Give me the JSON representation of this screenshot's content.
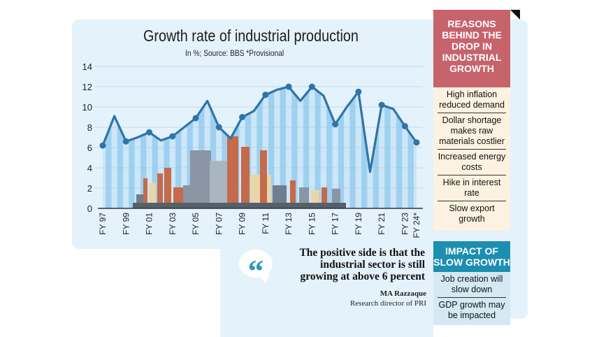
{
  "chart_data": {
    "type": "line",
    "title": "Growth rate of industrial production",
    "subtitle": "In %; Source: BBS *Provisional",
    "categories": [
      "FY 97",
      "FY 98",
      "FY 99",
      "FY 00",
      "FY 01",
      "FY 02",
      "FY 03",
      "FY 04",
      "FY 05",
      "FY 06",
      "FY 07",
      "FY 08",
      "FY 09",
      "FY 10",
      "FY 11",
      "FY 12",
      "FY 13",
      "FY 14",
      "FY 15",
      "FY 16",
      "FY 17",
      "FY 18",
      "FY 19",
      "FY 20",
      "FY 21",
      "FY 22",
      "FY 23",
      "FY 24*"
    ],
    "tick_labels": [
      "FY 97",
      "",
      "FY 99",
      "",
      "FY 01",
      "",
      "FY 03",
      "",
      "FY 05",
      "",
      "FY 07",
      "",
      "FY 09",
      "",
      "FY 11",
      "",
      "FY 13",
      "",
      "FY 15",
      "",
      "FY 17",
      "",
      "FY 19",
      "",
      "FY 21",
      "",
      "FY 23",
      "FY 24*"
    ],
    "values": [
      6.2,
      9.1,
      6.6,
      7.0,
      7.5,
      6.7,
      7.1,
      8.0,
      8.9,
      10.6,
      8.0,
      6.9,
      9.0,
      9.6,
      11.2,
      11.7,
      12.0,
      10.6,
      12.0,
      11.1,
      8.3,
      10.0,
      11.5,
      3.6,
      10.2,
      9.8,
      8.1,
      6.5
    ],
    "markers_on": [
      "FY 97",
      "FY 99",
      "FY 01",
      "FY 03",
      "FY 05",
      "FY 07",
      "FY 09",
      "FY 11",
      "FY 13",
      "FY 15",
      "FY 17",
      "FY 19",
      "FY 21",
      "FY 23",
      "FY 24*"
    ],
    "yticks": [
      0,
      2,
      4,
      6,
      8,
      10,
      12,
      14
    ],
    "ylim": [
      0,
      14
    ],
    "grid": true,
    "colors": {
      "line": "#2f74a8",
      "stripe_dark": "#9fd0f0",
      "stripe_light": "#cde7f8",
      "background": "#e4f2fb"
    }
  },
  "quote": {
    "text": "The positive side is that the industrial sector is still growing at above 6 percent",
    "name": "MA Razzaque",
    "role": "Research director of PRI",
    "icon": "quote-mark-icon"
  },
  "reasons": {
    "title": "Reasons behind the drop in industrial growth",
    "color": "#c6636b",
    "items": [
      "High inflation reduced demand",
      "Dollar shortage makes raw materials costlier",
      "Increased energy costs",
      "Hike in interest rate",
      "Slow export growth"
    ]
  },
  "impact": {
    "title": "IMPACT OF SLOW GROWTH",
    "color": "#1c8eaf",
    "items": [
      "Job creation will slow down",
      "GDP growth may be impacted"
    ]
  }
}
